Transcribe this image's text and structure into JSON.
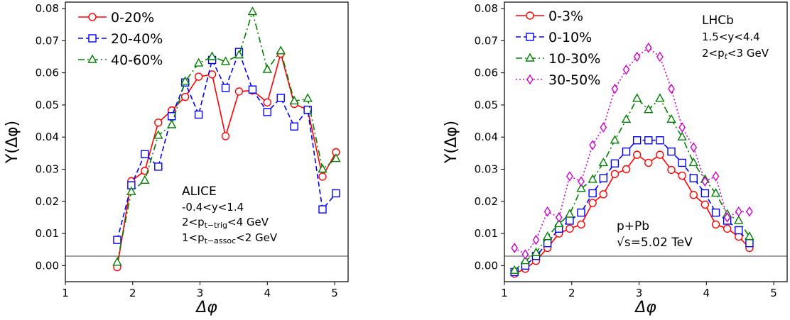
{
  "chart_data": [
    {
      "type": "line",
      "xlabel": "Δφ",
      "ylabel": "Y(Δφ)",
      "xlim": [
        1,
        5.2
      ],
      "ylim": [
        -0.005,
        0.082
      ],
      "xticks": [
        "1",
        "2",
        "3",
        "4",
        "5"
      ],
      "yticks": [
        "0.00",
        "0.01",
        "0.02",
        "0.03",
        "0.04",
        "0.05",
        "0.06",
        "0.07",
        "0.08"
      ],
      "legend_position": "top-left",
      "reference_line_y": 0,
      "annotations": [
        "ALICE",
        "-0.4<y<1.4",
        "2<p_{t-trig}<4 GeV",
        "1<p_{t-assoc}<2 GeV"
      ],
      "series": [
        {
          "name": "0-20%",
          "color": "#ff0000",
          "dash": "solid",
          "marker": "circle",
          "x": [
            1.77,
            1.98,
            2.18,
            2.38,
            2.58,
            2.78,
            2.98,
            3.18,
            3.38,
            3.58,
            3.78,
            4.0,
            4.2,
            4.4,
            4.6,
            4.82,
            5.02
          ],
          "values": [
            -0.0005,
            0.0263,
            0.0295,
            0.0445,
            0.0483,
            0.0525,
            0.0588,
            0.0595,
            0.0403,
            0.0542,
            0.0545,
            0.0508,
            0.066,
            0.0503,
            0.0485,
            0.0277,
            0.0353
          ]
        },
        {
          "name": "20-40%",
          "color": "#0000ff",
          "dash": "dashed",
          "marker": "square",
          "x": [
            1.77,
            1.98,
            2.18,
            2.38,
            2.58,
            2.78,
            2.98,
            3.18,
            3.38,
            3.58,
            3.78,
            4.0,
            4.2,
            4.4,
            4.6,
            4.82,
            5.02
          ],
          "values": [
            0.008,
            0.025,
            0.0347,
            0.0308,
            0.0465,
            0.057,
            0.047,
            0.064,
            0.0553,
            0.0665,
            0.0548,
            0.0478,
            0.0522,
            0.0433,
            0.0485,
            0.0175,
            0.0225
          ]
        },
        {
          "name": "40-60%",
          "color": "#008000",
          "dash": "dashdot",
          "marker": "triangle",
          "x": [
            1.77,
            1.98,
            2.18,
            2.38,
            2.58,
            2.78,
            2.98,
            3.18,
            3.38,
            3.58,
            3.78,
            4.0,
            4.2,
            4.4,
            4.6,
            4.82,
            5.02
          ],
          "values": [
            0.001,
            0.023,
            0.0265,
            0.0405,
            0.0438,
            0.0573,
            0.063,
            0.065,
            0.0635,
            0.0655,
            0.079,
            0.061,
            0.0668,
            0.0512,
            0.052,
            0.03,
            0.0333
          ]
        }
      ]
    },
    {
      "type": "line",
      "xlabel": "Δφ",
      "ylabel": "Y(Δφ)",
      "xlim": [
        1,
        5.2
      ],
      "ylim": [
        -0.005,
        0.082
      ],
      "xticks": [
        "1",
        "2",
        "3",
        "4",
        "5"
      ],
      "yticks": [
        "0.00",
        "0.01",
        "0.02",
        "0.03",
        "0.04",
        "0.05",
        "0.06",
        "0.07",
        "0.08"
      ],
      "legend_position": "top-left",
      "reference_line_y": 0,
      "annotations": [
        "LHCb",
        "1.5<y<4.4",
        "2<p_t<3 GeV",
        "p+Pb",
        "√s=5.02 TeV"
      ],
      "series": [
        {
          "name": "0-3%",
          "color": "#ff0000",
          "dash": "solid",
          "marker": "circle",
          "x": [
            1.15,
            1.31,
            1.47,
            1.64,
            1.81,
            1.97,
            2.14,
            2.31,
            2.47,
            2.64,
            2.81,
            2.97,
            3.14,
            3.31,
            3.48,
            3.64,
            3.81,
            3.98,
            4.14,
            4.31,
            4.48,
            4.64
          ],
          "values": [
            -0.0025,
            -0.001,
            0.0015,
            0.0055,
            0.01,
            0.0115,
            0.0128,
            0.0195,
            0.0222,
            0.0285,
            0.03,
            0.0345,
            0.032,
            0.0345,
            0.0298,
            0.028,
            0.022,
            0.019,
            0.0128,
            0.0115,
            0.009,
            0.0055
          ]
        },
        {
          "name": "0-10%",
          "color": "#0000ff",
          "dash": "dashed",
          "marker": "square",
          "x": [
            1.15,
            1.31,
            1.47,
            1.64,
            1.81,
            1.97,
            2.14,
            2.31,
            2.47,
            2.64,
            2.81,
            2.97,
            3.14,
            3.31,
            3.48,
            3.64,
            3.81,
            3.98,
            4.14,
            4.31,
            4.48,
            4.64
          ],
          "values": [
            -0.002,
            0.0,
            0.003,
            0.007,
            0.0115,
            0.014,
            0.0165,
            0.0225,
            0.0272,
            0.0318,
            0.0355,
            0.039,
            0.039,
            0.039,
            0.0355,
            0.032,
            0.0272,
            0.0225,
            0.0165,
            0.014,
            0.011,
            0.007
          ]
        },
        {
          "name": "10-30%",
          "color": "#008000",
          "dash": "dashdot",
          "marker": "triangle",
          "x": [
            1.15,
            1.31,
            1.47,
            1.64,
            1.81,
            1.97,
            2.14,
            2.31,
            2.47,
            2.64,
            2.81,
            2.97,
            3.14,
            3.31,
            3.48,
            3.64,
            3.81,
            3.98,
            4.14,
            4.31,
            4.48,
            4.64
          ],
          "values": [
            -0.0015,
            0.0015,
            0.004,
            0.009,
            0.013,
            0.016,
            0.024,
            0.0268,
            0.032,
            0.039,
            0.0455,
            0.052,
            0.0485,
            0.052,
            0.0455,
            0.04,
            0.032,
            0.0268,
            0.0225,
            0.016,
            0.014,
            0.009
          ]
        },
        {
          "name": "30-50%",
          "color": "#cc00cc",
          "dash": "dotted",
          "marker": "diamond",
          "x": [
            1.15,
            1.31,
            1.47,
            1.64,
            1.81,
            1.97,
            2.14,
            2.31,
            2.47,
            2.64,
            2.81,
            2.97,
            3.14,
            3.31,
            3.48,
            3.64,
            3.81,
            3.98,
            4.14,
            4.31,
            4.48,
            4.64
          ],
          "values": [
            0.0055,
            0.0035,
            0.008,
            0.0168,
            0.015,
            0.0278,
            0.0262,
            0.0375,
            0.043,
            0.055,
            0.061,
            0.065,
            0.0678,
            0.065,
            0.055,
            0.043,
            0.0368,
            0.0262,
            0.0278,
            0.015,
            0.0168,
            0.0168
          ]
        }
      ]
    }
  ]
}
